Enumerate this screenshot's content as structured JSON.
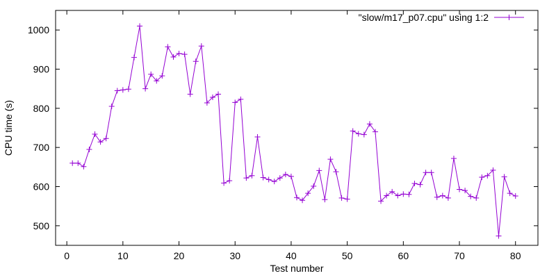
{
  "chart_data": {
    "type": "line",
    "xlabel": "Test number",
    "ylabel": "CPU time (s)",
    "xlim": [
      -2,
      84
    ],
    "ylim": [
      450,
      1050
    ],
    "xticks": [
      0,
      10,
      20,
      30,
      40,
      50,
      60,
      70,
      80
    ],
    "yticks": [
      500,
      600,
      700,
      800,
      900,
      1000
    ],
    "grid": false,
    "legend_position": "top-right",
    "series": [
      {
        "name": "\"slow/m17_p07.cpu\" using 1:2",
        "color": "#9400d3",
        "marker": "plus",
        "x": [
          1,
          2,
          3,
          4,
          5,
          6,
          7,
          8,
          9,
          10,
          11,
          12,
          13,
          14,
          15,
          16,
          17,
          18,
          19,
          20,
          21,
          22,
          23,
          24,
          25,
          26,
          27,
          28,
          29,
          30,
          31,
          32,
          33,
          34,
          35,
          36,
          37,
          38,
          39,
          40,
          41,
          42,
          43,
          44,
          45,
          46,
          47,
          48,
          49,
          50,
          51,
          52,
          53,
          54,
          55,
          56,
          57,
          58,
          59,
          60,
          61,
          62,
          63,
          64,
          65,
          66,
          67,
          68,
          69,
          70,
          71,
          72,
          73,
          74,
          75,
          76,
          77,
          78,
          79,
          80
        ],
        "values": [
          660,
          660,
          651,
          695,
          734,
          714,
          723,
          805,
          845,
          847,
          849,
          930,
          1010,
          850,
          887,
          870,
          883,
          957,
          931,
          940,
          938,
          836,
          920,
          959,
          814,
          828,
          836,
          609,
          615,
          815,
          823,
          622,
          628,
          727,
          623,
          618,
          613,
          622,
          631,
          626,
          572,
          565,
          583,
          601,
          641,
          567,
          670,
          638,
          571,
          568,
          742,
          735,
          733,
          760,
          740,
          563,
          577,
          587,
          577,
          581,
          580,
          608,
          605,
          636,
          636,
          573,
          577,
          571,
          672,
          593,
          590,
          575,
          571,
          624,
          628,
          642,
          474,
          625,
          583,
          576
        ]
      }
    ]
  }
}
